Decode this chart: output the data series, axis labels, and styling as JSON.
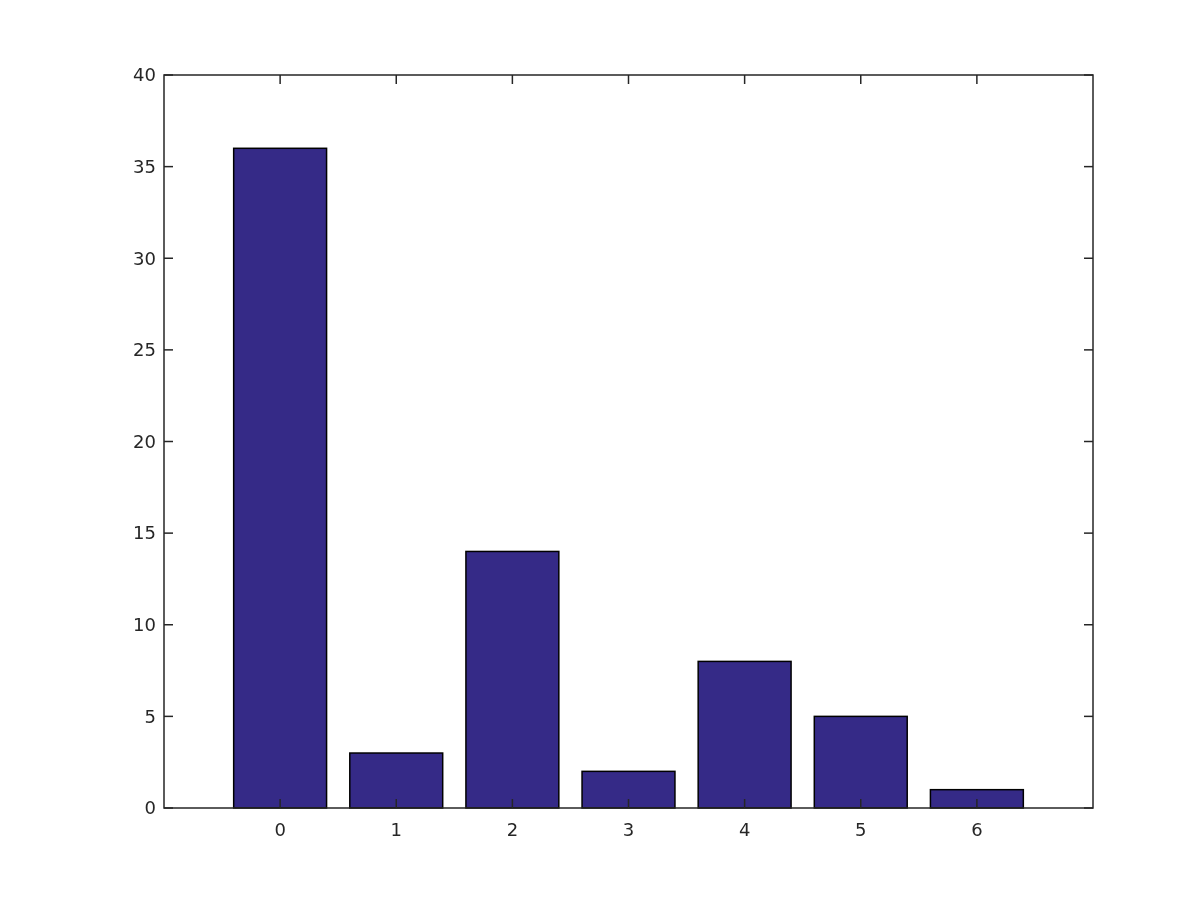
{
  "chart_data": {
    "type": "bar",
    "x": [
      0,
      1,
      2,
      3,
      4,
      5,
      6
    ],
    "values": [
      36,
      3,
      14,
      2,
      8,
      5,
      1
    ],
    "color": "#352a87",
    "xlim": [
      -1,
      7
    ],
    "xticks": [
      0,
      1,
      2,
      3,
      4,
      5,
      6
    ],
    "ylim": [
      0,
      40
    ],
    "yticks": [
      0,
      5,
      10,
      15,
      20,
      25,
      30,
      35,
      40
    ],
    "grid": false
  }
}
